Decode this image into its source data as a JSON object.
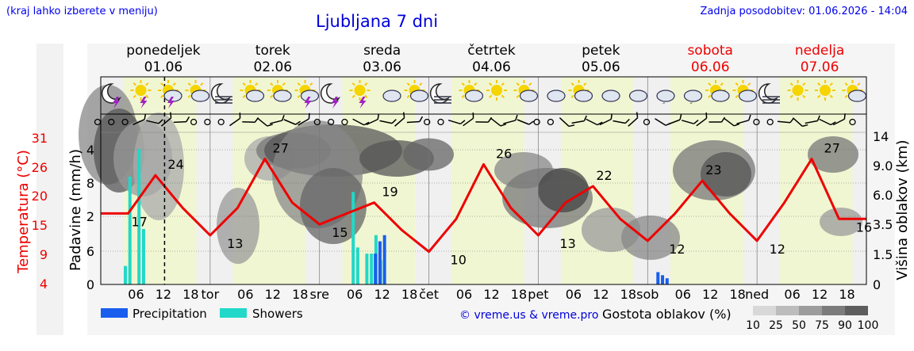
{
  "header": {
    "location_hint": "(kraj lahko izberete v meniju)",
    "title": "Ljubljana 7 dni",
    "last_update": "Zadnja posodobitev: 01.06.2026 - 14:04"
  },
  "days": [
    {
      "name": "ponedeljek",
      "date": "01.06",
      "weekend": false
    },
    {
      "name": "torek",
      "date": "02.06",
      "weekend": false
    },
    {
      "name": "sreda",
      "date": "03.06",
      "weekend": false
    },
    {
      "name": "četrtek",
      "date": "04.06",
      "weekend": false
    },
    {
      "name": "petek",
      "date": "05.06",
      "weekend": false
    },
    {
      "name": "sobota",
      "date": "06.06",
      "weekend": true
    },
    {
      "name": "nedelja",
      "date": "07.06",
      "weekend": true
    }
  ],
  "x_axis": {
    "day_abbr": [
      "tor",
      "sre",
      "čet",
      "pet",
      "sob",
      "ned"
    ],
    "hour_ticks": [
      "06",
      "12",
      "18"
    ]
  },
  "axes": {
    "temperature": {
      "label": "Temperatura (°C)",
      "ticks": [
        "31",
        "26",
        "20",
        "15",
        "9",
        "4"
      ],
      "color": "#ee0000"
    },
    "precipitation": {
      "label": "Padavine (mm/h)",
      "ticks": [
        "4",
        "8",
        "2",
        "6",
        "0"
      ]
    },
    "cloud_height": {
      "label": "Višina oblakov (km)",
      "ticks": [
        "14",
        "9.0",
        "6.0",
        "3.5",
        "1.5",
        "0"
      ]
    }
  },
  "legend": {
    "precipitation": "Precipitation",
    "showers": "Showers",
    "precip_color": "#1a5eee",
    "shower_color": "#22d8c8",
    "copyright": "© vreme.us & vreme.pro",
    "cloud_density_label": "Gostota oblakov (%)",
    "cloud_density_values": [
      "10",
      "25",
      "50",
      "75",
      "90",
      "100"
    ]
  },
  "icons": [
    "moon-storm",
    "sun-storm",
    "sun-cloud-storm",
    "sun-cloud",
    "moon-fog",
    "sun-cloud",
    "sun-cloud",
    "sun-cloud-storm",
    "moon-storm",
    "sun-storm",
    "clouds",
    "sun-cloud",
    "moon-fog",
    "sun-cloud",
    "sun",
    "sun-cloud",
    "clouds",
    "sun-cloud",
    "clouds",
    "clouds",
    "cloud-drizzle",
    "cloud-drizzle",
    "sun-cloud",
    "sun-cloud",
    "moon-fog",
    "sun",
    "sun",
    "sun-cloud"
  ],
  "chart_data": {
    "type": "line",
    "series": [
      {
        "name": "Temperatura",
        "unit": "°C",
        "x_hours": [
          0,
          6,
          12,
          18,
          24,
          30,
          36,
          42,
          48,
          54,
          60,
          66,
          72,
          78,
          84,
          90,
          96,
          102,
          108,
          114,
          120,
          126,
          132,
          138,
          144,
          150,
          156,
          162
        ],
        "values": [
          17,
          17,
          24,
          18,
          13,
          18,
          27,
          19,
          15,
          17,
          19,
          14,
          10,
          16,
          26,
          18,
          13,
          19,
          22,
          16,
          12,
          17,
          23,
          17,
          12,
          19,
          27,
          16
        ]
      },
      {
        "name": "Showers",
        "unit": "mm/h",
        "x_hours": [
          4,
          5,
          7,
          8,
          54,
          55,
          57,
          58,
          59,
          60
        ],
        "values": [
          0.6,
          3.5,
          4.4,
          1.8,
          3.0,
          1.2,
          1.0,
          1.0,
          1.6,
          0.8
        ]
      },
      {
        "name": "Precipitation",
        "unit": "mm/h",
        "x_hours": [
          58,
          59,
          60,
          120,
          121,
          122
        ],
        "values": [
          1.0,
          1.4,
          1.6,
          0.4,
          0.3,
          0.2
        ]
      }
    ],
    "current_time_hour": 14,
    "temperature_labels": [
      "17",
      "24",
      "13",
      "27",
      "15",
      "19",
      "10",
      "26",
      "13",
      "22",
      "12",
      "23",
      "12",
      "27",
      "16"
    ]
  }
}
